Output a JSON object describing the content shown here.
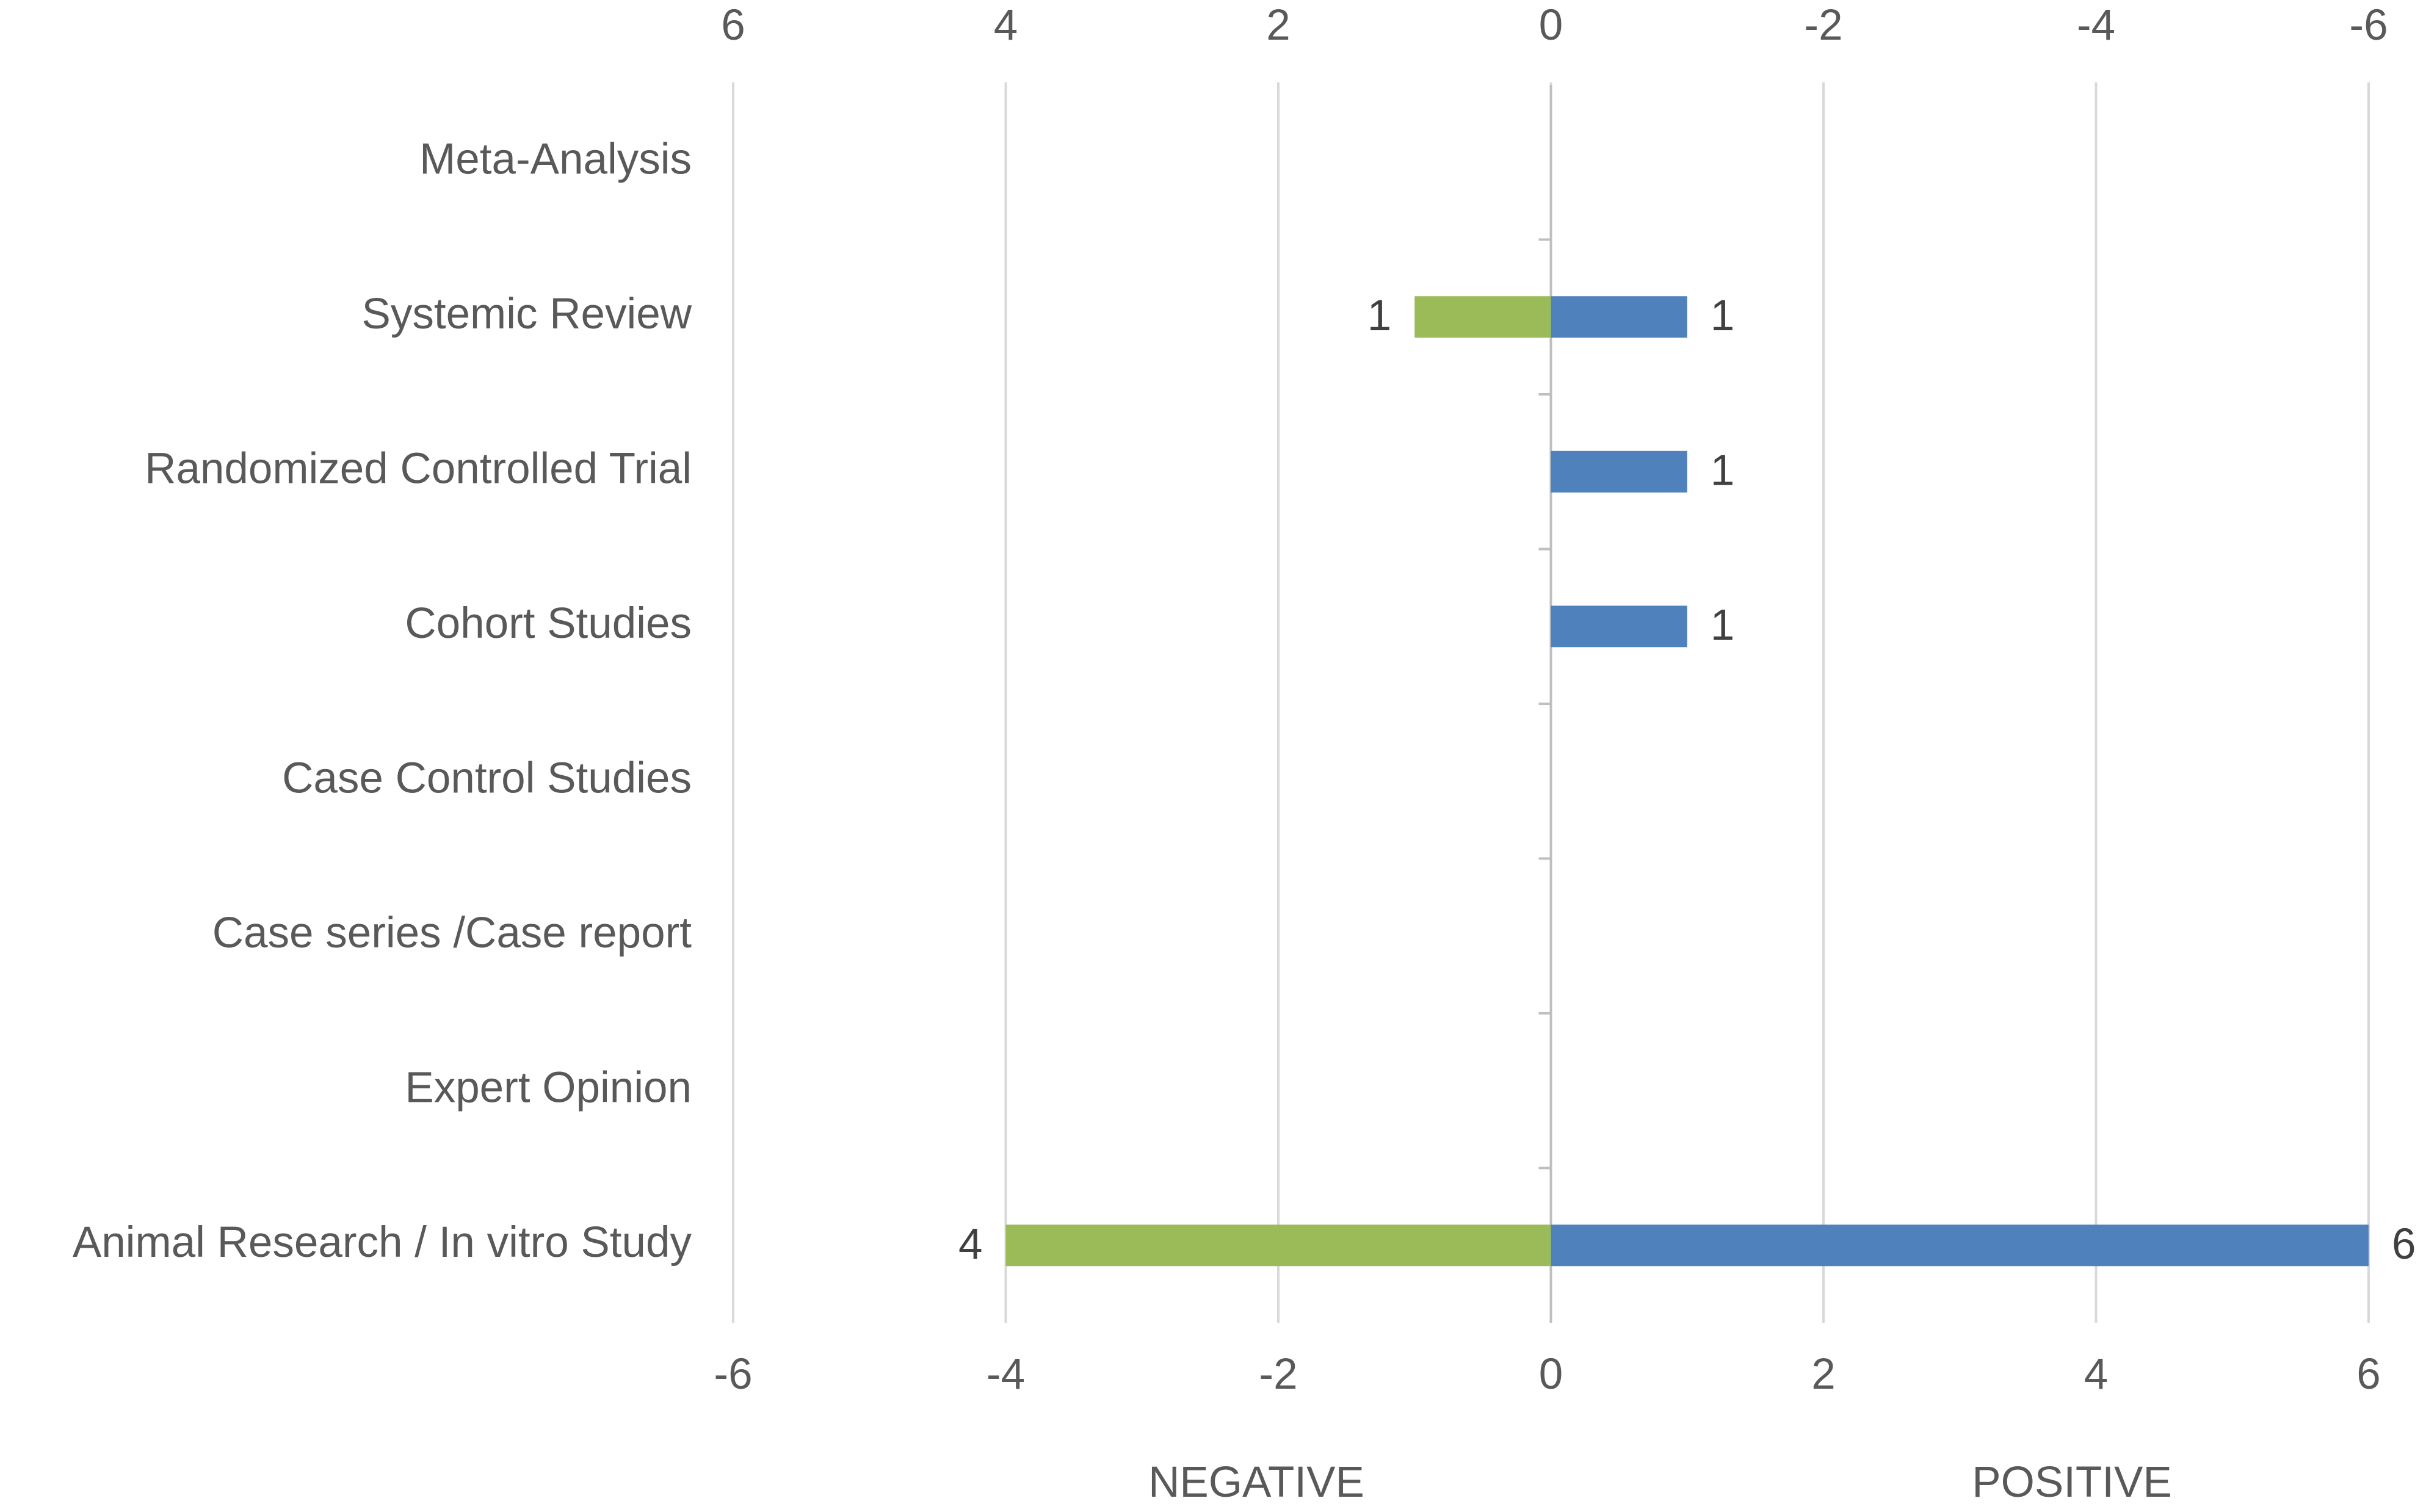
{
  "chart_data": {
    "type": "butterfly-bar",
    "categories": [
      "Meta-Analysis",
      "Systemic Review",
      "Randomized Controlled Trial",
      "Cohort Studies",
      "Case Control Studies",
      "Case series /Case report",
      "Expert Opinion",
      "Animal Research / In vitro Study"
    ],
    "series": [
      {
        "color": "#9bbb59",
        "axis": "x2",
        "values": [
          null,
          1,
          null,
          null,
          null,
          null,
          null,
          4
        ]
      },
      {
        "color": "#4f81bd",
        "values": [
          null,
          1,
          1,
          1,
          null,
          null,
          null,
          6
        ]
      }
    ],
    "xlim": [
      -6,
      6
    ],
    "xticks": [
      -6,
      -4,
      -2,
      0,
      2,
      4,
      6
    ],
    "x2lim": [
      6,
      -6
    ],
    "x2ticks": [
      6,
      4,
      2,
      0,
      -2,
      -4,
      -6
    ],
    "x_labels": [
      "NEGATIVE",
      "POSITIVE"
    ],
    "grid": true
  }
}
